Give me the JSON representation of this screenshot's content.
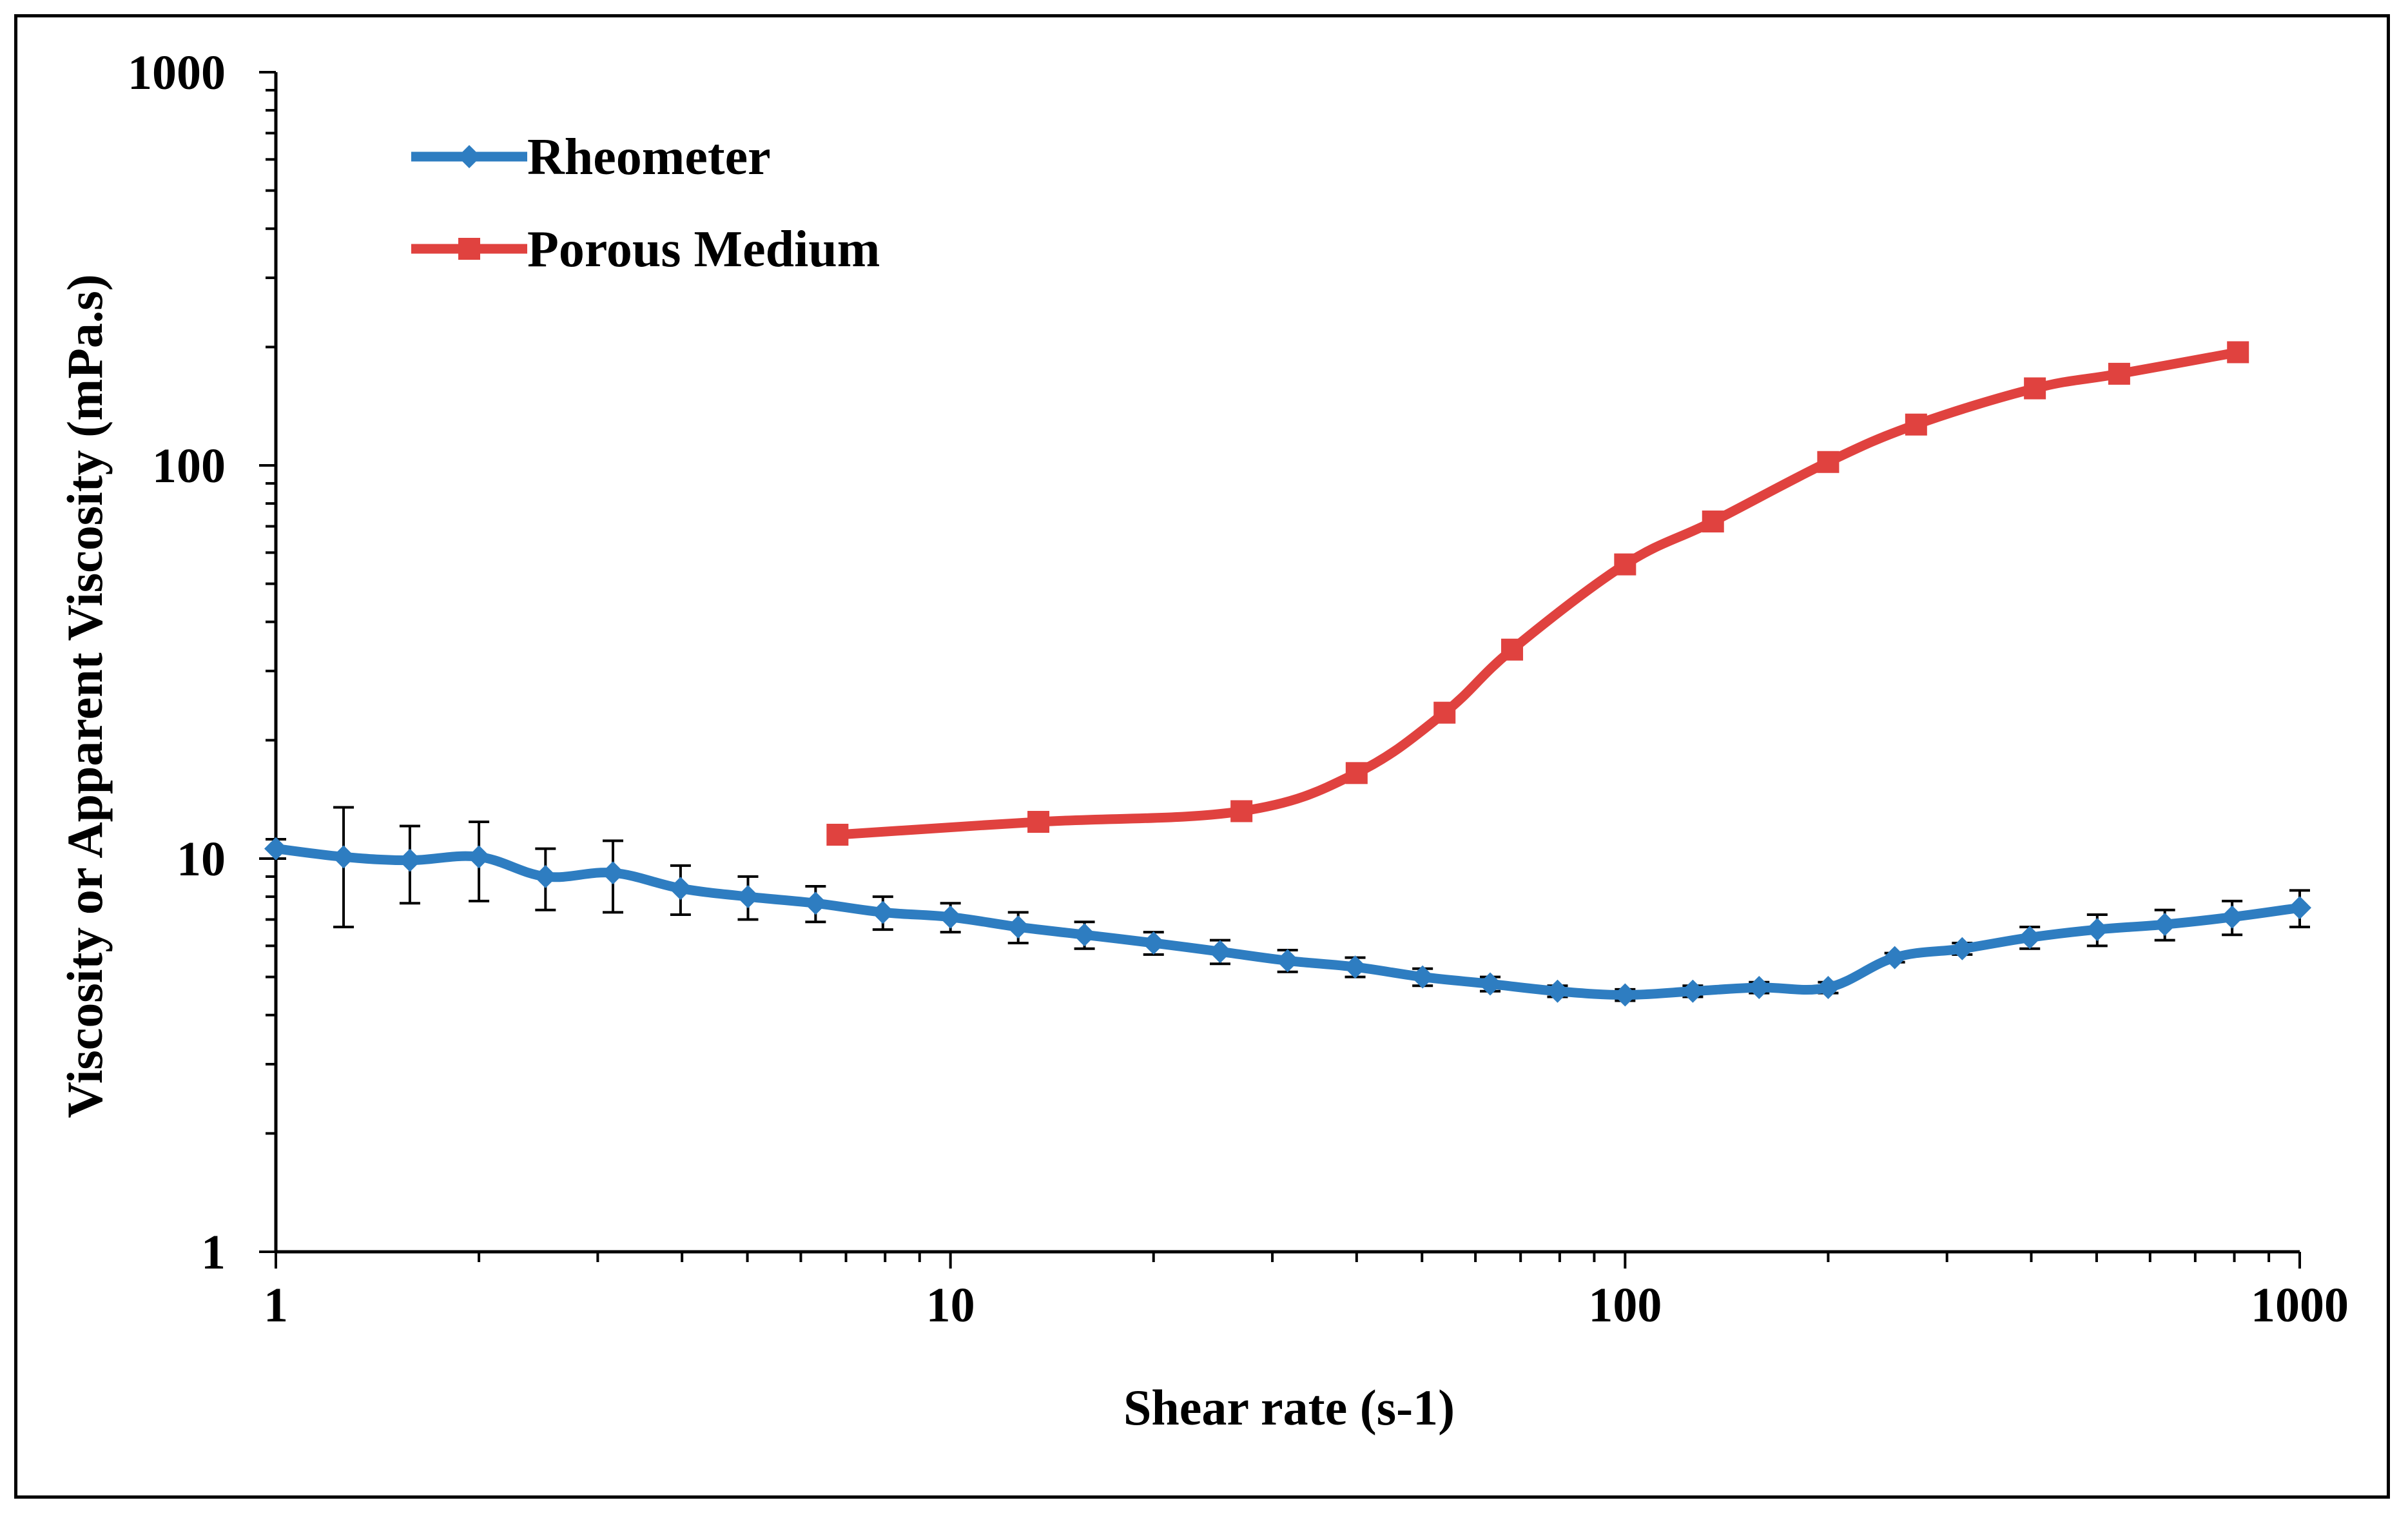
{
  "chart_data": {
    "type": "line",
    "title": "",
    "xlabel": "Shear rate (s-1)",
    "ylabel": "Viscosity or Apparent Viscosity (mPa.s)",
    "xscale": "log",
    "yscale": "log",
    "xlim": [
      1,
      1000
    ],
    "ylim": [
      1,
      1000
    ],
    "xticks": [
      1,
      10,
      100,
      1000
    ],
    "xtick_labels": [
      "1",
      "10",
      "100",
      "1000"
    ],
    "yticks": [
      1,
      10,
      100,
      1000
    ],
    "ytick_labels": [
      "1",
      "10",
      "100",
      "1000"
    ],
    "grid": false,
    "legend_position": "top-left",
    "series": [
      {
        "name": "Rheometer",
        "color": "#2E7DC1",
        "marker": "diamond",
        "x": [
          1,
          1.26,
          1.58,
          2,
          2.51,
          3.16,
          3.98,
          5.01,
          6.31,
          7.94,
          10,
          12.6,
          15.8,
          20,
          25.1,
          31.6,
          39.8,
          50.1,
          63.1,
          79.4,
          100,
          126,
          158,
          200,
          251,
          316,
          398,
          501,
          631,
          794,
          1000
        ],
        "y": [
          10.6,
          10.1,
          9.9,
          10.1,
          9.0,
          9.2,
          8.4,
          8.0,
          7.7,
          7.3,
          7.1,
          6.7,
          6.4,
          6.1,
          5.8,
          5.5,
          5.3,
          5.0,
          4.8,
          4.6,
          4.5,
          4.6,
          4.7,
          4.7,
          5.6,
          5.9,
          6.3,
          6.6,
          6.8,
          7.1,
          7.5
        ],
        "error": [
          0.6,
          3.4,
          2.2,
          2.3,
          1.6,
          1.9,
          1.2,
          1.0,
          0.8,
          0.7,
          0.6,
          0.6,
          0.5,
          0.4,
          0.4,
          0.35,
          0.3,
          0.25,
          0.2,
          0.15,
          0.15,
          0.15,
          0.15,
          0.15,
          0.15,
          0.2,
          0.4,
          0.6,
          0.6,
          0.7,
          0.8
        ]
      },
      {
        "name": "Porous Medium",
        "color": "#E0423F",
        "marker": "square",
        "x": [
          6.8,
          13.5,
          27,
          40,
          54,
          68,
          100,
          135,
          200,
          270,
          405,
          540,
          810
        ],
        "y": [
          11.5,
          12.4,
          13.2,
          16.5,
          23.5,
          34,
          56,
          72,
          102,
          127,
          157,
          171,
          194
        ]
      }
    ]
  }
}
